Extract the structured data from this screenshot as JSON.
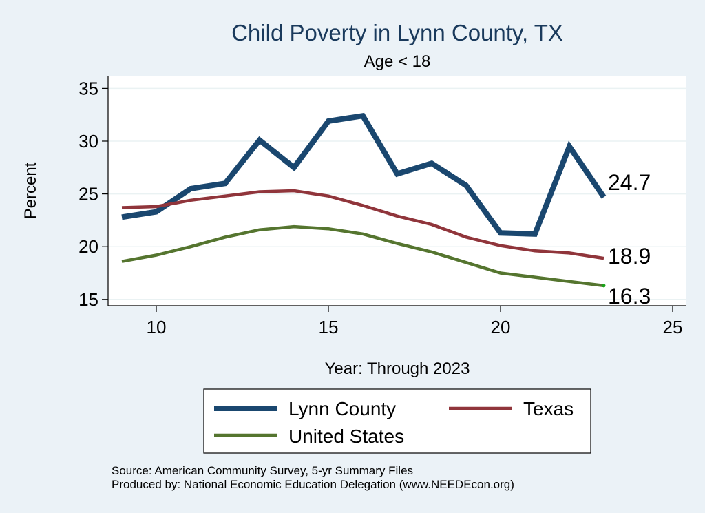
{
  "chart_data": {
    "type": "line",
    "title": "Child Poverty in Lynn County, TX",
    "subtitle": "Age < 18",
    "xlabel": "Year: Through 2023",
    "ylabel": "Percent",
    "xlim": [
      8.6,
      25.4
    ],
    "ylim": [
      14.4,
      36.2
    ],
    "xticks": [
      10,
      15,
      20,
      25
    ],
    "yticks": [
      15,
      20,
      25,
      30,
      35
    ],
    "x": [
      9,
      10,
      11,
      12,
      13,
      14,
      15,
      16,
      17,
      18,
      19,
      20,
      21,
      22,
      23
    ],
    "series": [
      {
        "name": "Lynn County",
        "color": "#1a476f",
        "values": [
          22.8,
          23.3,
          25.5,
          26.0,
          30.1,
          27.5,
          31.9,
          32.4,
          26.9,
          27.9,
          25.8,
          21.3,
          21.2,
          29.5,
          24.7
        ],
        "end_label": "24.7"
      },
      {
        "name": "Texas",
        "color": "#90353b",
        "values": [
          23.7,
          23.8,
          24.4,
          24.8,
          25.2,
          25.3,
          24.8,
          23.9,
          22.9,
          22.1,
          20.9,
          20.1,
          19.6,
          19.4,
          18.9
        ],
        "end_label": "18.9"
      },
      {
        "name": "United States",
        "color": "#55752f",
        "values": [
          18.6,
          19.2,
          20.0,
          20.9,
          21.6,
          21.9,
          21.7,
          21.2,
          20.3,
          19.5,
          18.5,
          17.5,
          17.1,
          16.7,
          16.3
        ],
        "end_label": "16.3"
      }
    ],
    "legend_position": "bottom",
    "notes": [
      "Source: American Community Survey, 5-yr Summary Files",
      "Produced by: National Economic Education Delegation (www.NEEDEcon.org)"
    ]
  }
}
